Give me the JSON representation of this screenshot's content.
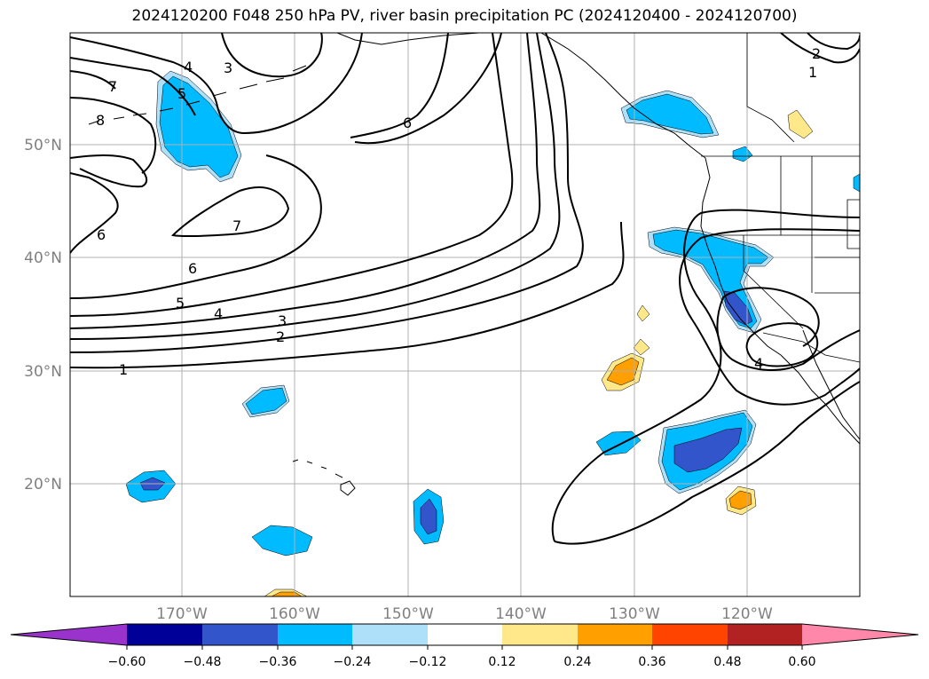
{
  "title": "2024120200 F048 250 hPa PV, river basin precipitation PC (2024120400 - 2024120700)",
  "colors": {
    "neg_060": "#9933cc",
    "neg_048": "#000099",
    "neg_036": "#3355cc",
    "neg_024": "#00bbff",
    "neg_012": "#aee0fa",
    "neutral": "#ffffff",
    "pos_012": "#ffe88a",
    "pos_024": "#ffa000",
    "pos_036": "#ff4400",
    "pos_048": "#b22222",
    "pos_060": "#ff88aa",
    "grid": "#b0b0b0",
    "contour": "#000000"
  },
  "axes": {
    "lat_labels": [
      "50°N",
      "40°N",
      "30°N",
      "20°N"
    ],
    "lon_labels": [
      "170°W",
      "160°W",
      "150°W",
      "140°W",
      "130°W",
      "120°W"
    ]
  },
  "colorbar": {
    "tick_labels": [
      "−0.60",
      "−0.48",
      "−0.36",
      "−0.24",
      "−0.12",
      "0.12",
      "0.24",
      "0.36",
      "0.48",
      "0.60"
    ]
  },
  "contour_labels": [
    "7",
    "8",
    "4",
    "3",
    "5",
    "6",
    "7",
    "6",
    "6",
    "5",
    "4",
    "3",
    "2",
    "1",
    "2",
    "1",
    "4"
  ]
}
